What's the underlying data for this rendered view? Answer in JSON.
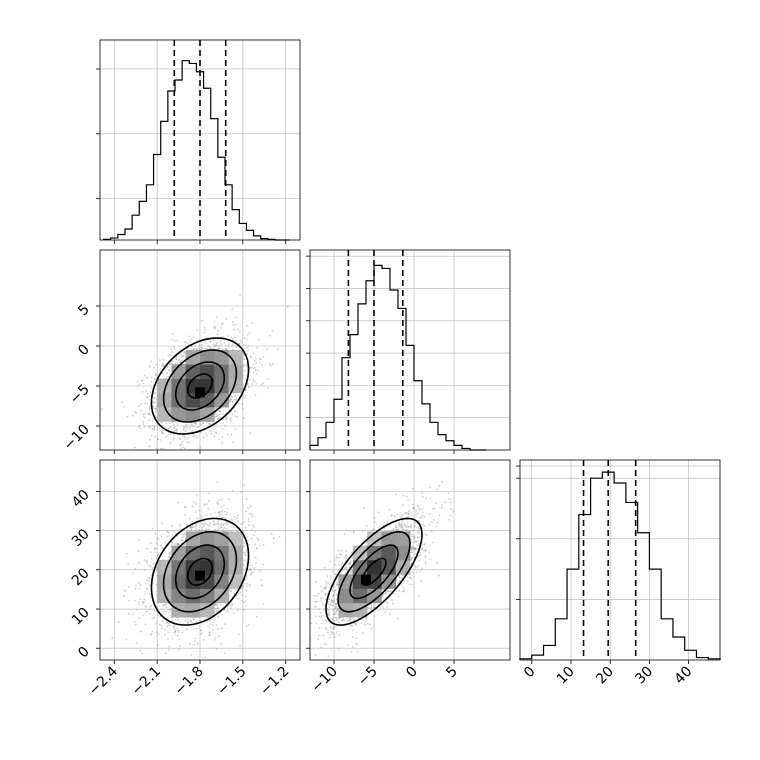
{
  "chart_data": {
    "type": "corner",
    "parameters": [
      "p1",
      "p2",
      "p3"
    ],
    "grid": true,
    "histograms": [
      {
        "name": "hist-p1",
        "range": [
          -2.5,
          -1.1
        ],
        "bins": [
          -2.45,
          -2.4,
          -2.35,
          -2.3,
          -2.25,
          -2.2,
          -2.15,
          -2.1,
          -2.05,
          -2.0,
          -1.95,
          -1.9,
          -1.85,
          -1.8,
          -1.75,
          -1.7,
          -1.65,
          -1.6,
          -1.55,
          -1.5,
          -1.45,
          -1.4,
          -1.35,
          -1.3,
          -1.25,
          -1.2
        ],
        "values": [
          0.5,
          1.5,
          4,
          8,
          18,
          28,
          40,
          62,
          86,
          108,
          116,
          130,
          128,
          122,
          110,
          88,
          60,
          40,
          22,
          12,
          7,
          3,
          1,
          0.5,
          0,
          0
        ],
        "ymax": 145,
        "quantiles": [
          -1.98,
          -1.8,
          -1.62
        ],
        "yticks": [
          30,
          77,
          124
        ]
      },
      {
        "name": "hist-p2",
        "range": [
          -13,
          12
        ],
        "bins": [
          -12.5,
          -11.5,
          -10.5,
          -9.5,
          -8.5,
          -7.5,
          -6.5,
          -5.5,
          -4.5,
          -3.5,
          -2.5,
          -1.5,
          -0.5,
          0.5,
          1.5,
          2.5,
          3.5,
          4.5,
          5.5,
          6.5,
          7.5,
          8.5
        ],
        "values": [
          3,
          8,
          18,
          33,
          60,
          75,
          95,
          110,
          120,
          118,
          104,
          92,
          68,
          45,
          30,
          18,
          10,
          6,
          3,
          1,
          0,
          0
        ],
        "ymax": 130,
        "quantiles": [
          -8.2,
          -5.0,
          -1.4
        ],
        "yticks": [
          21,
          42,
          63,
          84,
          105,
          126
        ]
      },
      {
        "name": "hist-p3",
        "range": [
          -3,
          48
        ],
        "bins": [
          -1.5,
          1.5,
          4.5,
          7.5,
          10.5,
          13.5,
          16.5,
          19.5,
          22.5,
          25.5,
          28.5,
          31.5,
          34.5,
          37.5,
          40.5,
          43.5,
          46.5
        ],
        "values": [
          1,
          4,
          12,
          34,
          75,
          120,
          150,
          155,
          146,
          130,
          105,
          75,
          34,
          19,
          8,
          2,
          1
        ],
        "ymax": 165,
        "quantiles": [
          13.2,
          19.5,
          26.5
        ],
        "yticks": [
          50,
          100,
          150,
          160
        ]
      }
    ],
    "scatter_panels": [
      {
        "name": "panel-p1-p2",
        "x_param": "p1",
        "y_param": "p2",
        "x_range": [
          -2.5,
          -1.1
        ],
        "y_range": [
          -13,
          12
        ],
        "mean": [
          -1.8,
          -5.0
        ],
        "std": [
          0.17,
          3.0
        ],
        "corr": 0.35,
        "peak": [
          -1.8,
          -5.8
        ],
        "contour_levels_sigma": [
          0.5,
          1.0,
          1.5,
          2.0
        ]
      },
      {
        "name": "panel-p1-p3",
        "x_param": "p1",
        "y_param": "p3",
        "x_range": [
          -2.5,
          -1.1
        ],
        "y_range": [
          -3,
          48
        ],
        "mean": [
          -1.8,
          19.5
        ],
        "std": [
          0.17,
          6.8
        ],
        "corr": 0.3,
        "peak": [
          -1.8,
          18.5
        ],
        "contour_levels_sigma": [
          0.5,
          1.0,
          1.5,
          2.0
        ]
      },
      {
        "name": "panel-p2-p3",
        "x_param": "p2",
        "y_param": "p3",
        "x_range": [
          -13,
          12
        ],
        "y_range": [
          -3,
          48
        ],
        "mean": [
          -5.0,
          19.5
        ],
        "std": [
          3.0,
          6.8
        ],
        "corr": 0.7,
        "peak": [
          -6.0,
          17.5
        ],
        "contour_levels_sigma": [
          0.5,
          1.0,
          1.5,
          2.0
        ]
      }
    ],
    "axes": {
      "p1": {
        "ticks": [
          -2.4,
          -2.1,
          -1.8,
          -1.5,
          -1.2
        ],
        "tick_labels": [
          "−2.4",
          "−2.1",
          "−1.8",
          "−1.5",
          "−1.2"
        ]
      },
      "p2": {
        "ticks": [
          -10,
          -5,
          0,
          5
        ],
        "tick_labels": [
          "−10",
          "−5",
          "0",
          "5"
        ]
      },
      "p3": {
        "ticks": [
          0,
          10,
          20,
          30,
          40
        ],
        "tick_labels": [
          "0",
          "10",
          "20",
          "30",
          "40"
        ]
      }
    },
    "colors": {
      "line": "#000000",
      "grid": "#b0b0b0",
      "scatter": "#999999"
    }
  }
}
